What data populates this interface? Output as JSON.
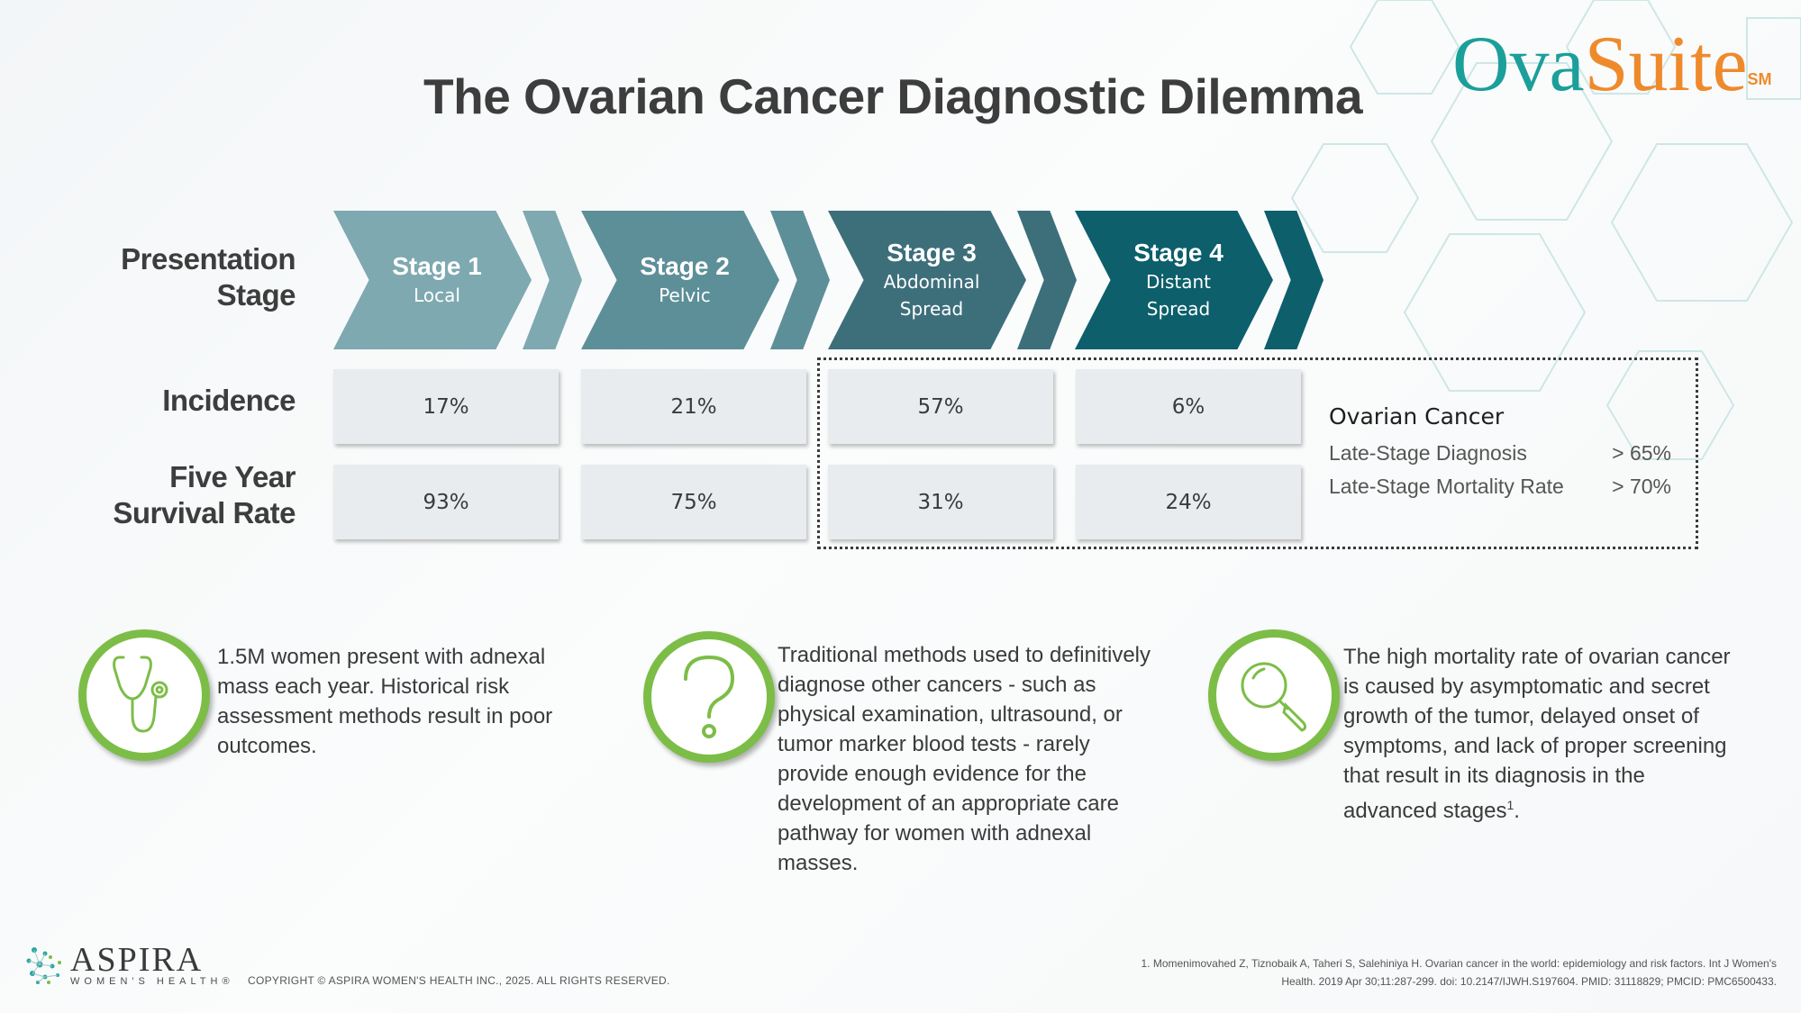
{
  "title": "The Ovarian Cancer Diagnostic Dilemma",
  "brand": {
    "ova": "Ova",
    "suite": "Suite",
    "mark": "SM"
  },
  "row_labels": {
    "presentation_stage": [
      "Presentation",
      "Stage"
    ],
    "incidence": "Incidence",
    "survival": [
      "Five Year",
      "Survival Rate"
    ]
  },
  "stages": [
    {
      "name": "Stage 1",
      "desc1": "Local",
      "desc2": "",
      "color": "#7ea9b0",
      "incidence": "17%",
      "survival": "93%"
    },
    {
      "name": "Stage 2",
      "desc1": "Pelvic",
      "desc2": "",
      "color": "#5d8f99",
      "incidence": "21%",
      "survival": "75%"
    },
    {
      "name": "Stage 3",
      "desc1": "Abdominal",
      "desc2": "Spread",
      "color": "#3d6f7b",
      "incidence": "57%",
      "survival": "31%"
    },
    {
      "name": "Stage 4",
      "desc1": "Distant",
      "desc2": "Spread",
      "color": "#0c5f6b",
      "incidence": "6%",
      "survival": "24%"
    }
  ],
  "summary": {
    "title": "Ovarian Cancer",
    "rows": [
      {
        "label": "Late-Stage Diagnosis",
        "value": "> 65%"
      },
      {
        "label": "Late-Stage Mortality Rate",
        "value": "> 70%"
      }
    ]
  },
  "info": [
    {
      "icon": "stethoscope-icon",
      "text": "1.5M women present with adnexal mass each year. Historical risk assessment methods result in poor outcomes."
    },
    {
      "icon": "question-mark-icon",
      "text": "Traditional methods used to definitively diagnose other cancers - such as physical examination, ultrasound, or tumor marker blood tests - rarely provide enough evidence for the development of an appropriate care pathway for women with adnexal masses."
    },
    {
      "icon": "magnifier-icon",
      "text": "The high mortality rate of ovarian cancer is caused by asymptomatic and secret growth of the tumor, delayed onset of symptoms, and lack of proper screening that result in its diagnosis in the advanced stages",
      "sup": "1",
      "end": "."
    }
  ],
  "footer": {
    "company": "ASPIRA",
    "company_sub": "WOMEN'S HEALTH®",
    "copyright": "COPYRIGHT © ASPIRA WOMEN'S HEALTH INC., 2025. ALL RIGHTS RESERVED.",
    "reference_line1": "1. Momenimovahed Z, Tiznobaik A, Taheri S, Salehiniya H. Ovarian cancer in the world: epidemiology and risk factors. Int J Women's",
    "reference_line2": "Health. 2019 Apr 30;11:287-299. doi: 10.2147/IJWH.S197604. PMID: 31118829; PMCID: PMC6500433."
  },
  "colors": {
    "accent_green": "#7cbd47",
    "teal": "#1b9f9a",
    "orange": "#ef8a2c"
  }
}
